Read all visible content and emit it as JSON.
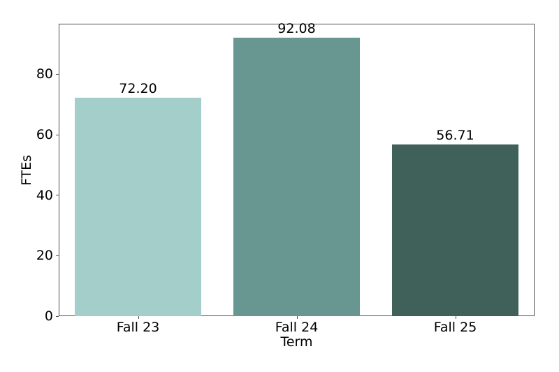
{
  "chart_data": {
    "type": "bar",
    "title": "",
    "xlabel": "Term",
    "ylabel": "FTEs",
    "categories": [
      "Fall 23",
      "Fall 24",
      "Fall 25"
    ],
    "values": [
      72.2,
      92.08,
      56.71
    ],
    "value_labels": [
      "72.20",
      "92.08",
      "56.71"
    ],
    "bar_colors": [
      "#a3cec9",
      "#689690",
      "#40615a"
    ],
    "ylim": [
      0,
      96.7
    ],
    "yticks": [
      0,
      20,
      40,
      60,
      80
    ],
    "grid": false,
    "legend": "none",
    "spine_color": "#4d4d4d",
    "text_color": "#000000",
    "background_color": "#ffffff"
  }
}
